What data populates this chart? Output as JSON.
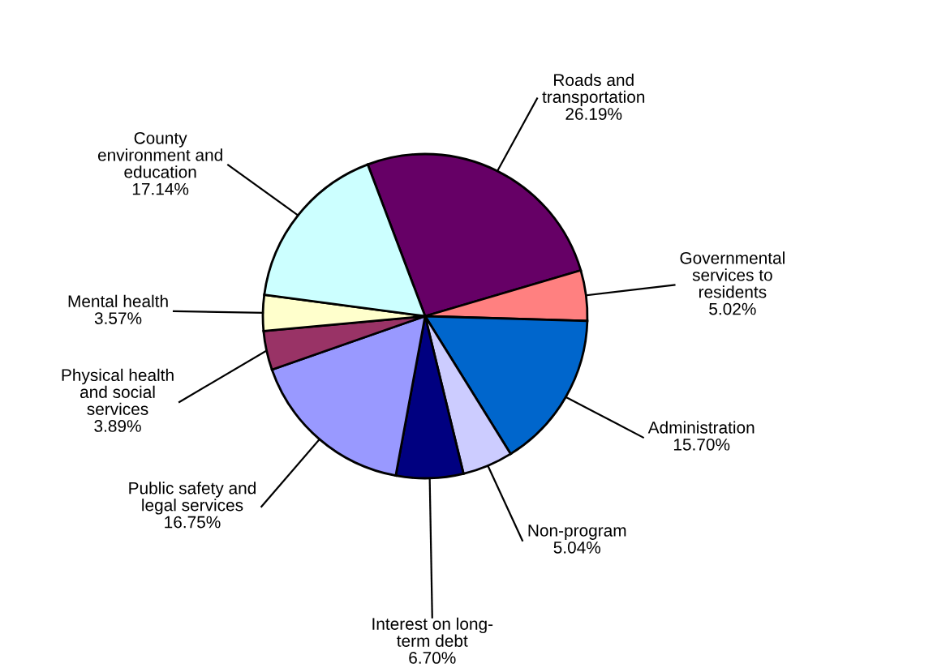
{
  "chart_data": {
    "type": "pie",
    "categories": [
      "Roads and\ntransportation",
      "Governmental\nservices to\nresidents",
      "Administration",
      "Non-program",
      "Interest on long-\nterm debt",
      "Public safety and\nlegal services",
      "Physical health\nand social\nservices",
      "Mental health",
      "County\nenvironment and\neducation"
    ],
    "values": [
      26.19,
      5.02,
      15.7,
      5.04,
      6.7,
      16.75,
      3.89,
      3.57,
      17.14
    ],
    "colors": [
      "#660066",
      "#ff8080",
      "#0066cc",
      "#ccccff",
      "#000080",
      "#9999ff",
      "#993366",
      "#ffffcc",
      "#ccffff"
    ],
    "value_labels": [
      "26.19%",
      "5.02%",
      "15.70%",
      "5.04%",
      "6.70%",
      "16.75%",
      "3.89%",
      "3.57%",
      "17.14%"
    ],
    "legend": false
  }
}
